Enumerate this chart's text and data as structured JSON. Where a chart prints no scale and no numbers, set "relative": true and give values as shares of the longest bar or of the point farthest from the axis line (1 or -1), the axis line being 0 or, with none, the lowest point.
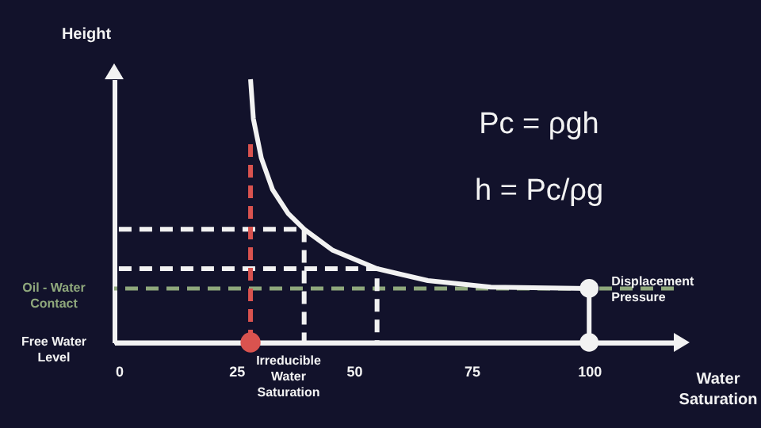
{
  "chart_data": {
    "type": "line",
    "relative": true,
    "xlabel": "Water Saturation",
    "ylabel": "Height",
    "xlim": [
      -1,
      118
    ],
    "xticks": [
      0,
      25,
      50,
      75,
      100
    ],
    "series": [
      {
        "color": "#f2f2f2",
        "x": [
          28,
          28.6,
          30.3,
          32.7,
          36.0,
          39.4,
          45.5,
          54.9,
          65.7,
          79.1,
          100
        ],
        "values": [
          1.0,
          0.85,
          0.7,
          0.58,
          0.49,
          0.43,
          0.35,
          0.28,
          0.235,
          0.21,
          0.205
        ]
      },
      {
        "color": "#f2f2f2",
        "line_style": "dashed",
        "x": [
          0,
          39.4,
          39.4
        ],
        "values": [
          0.43,
          0.43,
          0
        ]
      },
      {
        "color": "#f2f2f2",
        "line_style": "dashed",
        "x": [
          0,
          54.9,
          54.9
        ],
        "values": [
          0.28,
          0.28,
          0
        ]
      },
      {
        "color": "#d9534f",
        "line_style": "dashed",
        "x": [
          28,
          28
        ],
        "values": [
          0,
          0.76
        ]
      },
      {
        "type": "scatter",
        "color": "#d9534f",
        "x": [
          28
        ],
        "values": [
          0
        ]
      },
      {
        "color": "#f2f2f2",
        "marker": "circle",
        "x": [
          100,
          100
        ],
        "values": [
          0,
          0.205
        ]
      }
    ],
    "ref_lines": [
      {
        "axis": "y",
        "value": 0.205,
        "label": "Oil - Water Contact",
        "color": "#8fa87c",
        "line_style": "dashed"
      },
      {
        "axis": "y",
        "value": 0,
        "label": "Free Water Level",
        "color": "#f2f2f2"
      }
    ],
    "annotations": [
      "Pc = ρgh",
      "h = Pc/ρg",
      {
        "text": "Irreducible Water Saturation",
        "x": 28,
        "y": 0
      },
      {
        "text": "Displacement Pressure",
        "x": 100,
        "y": 0.205
      }
    ]
  }
}
